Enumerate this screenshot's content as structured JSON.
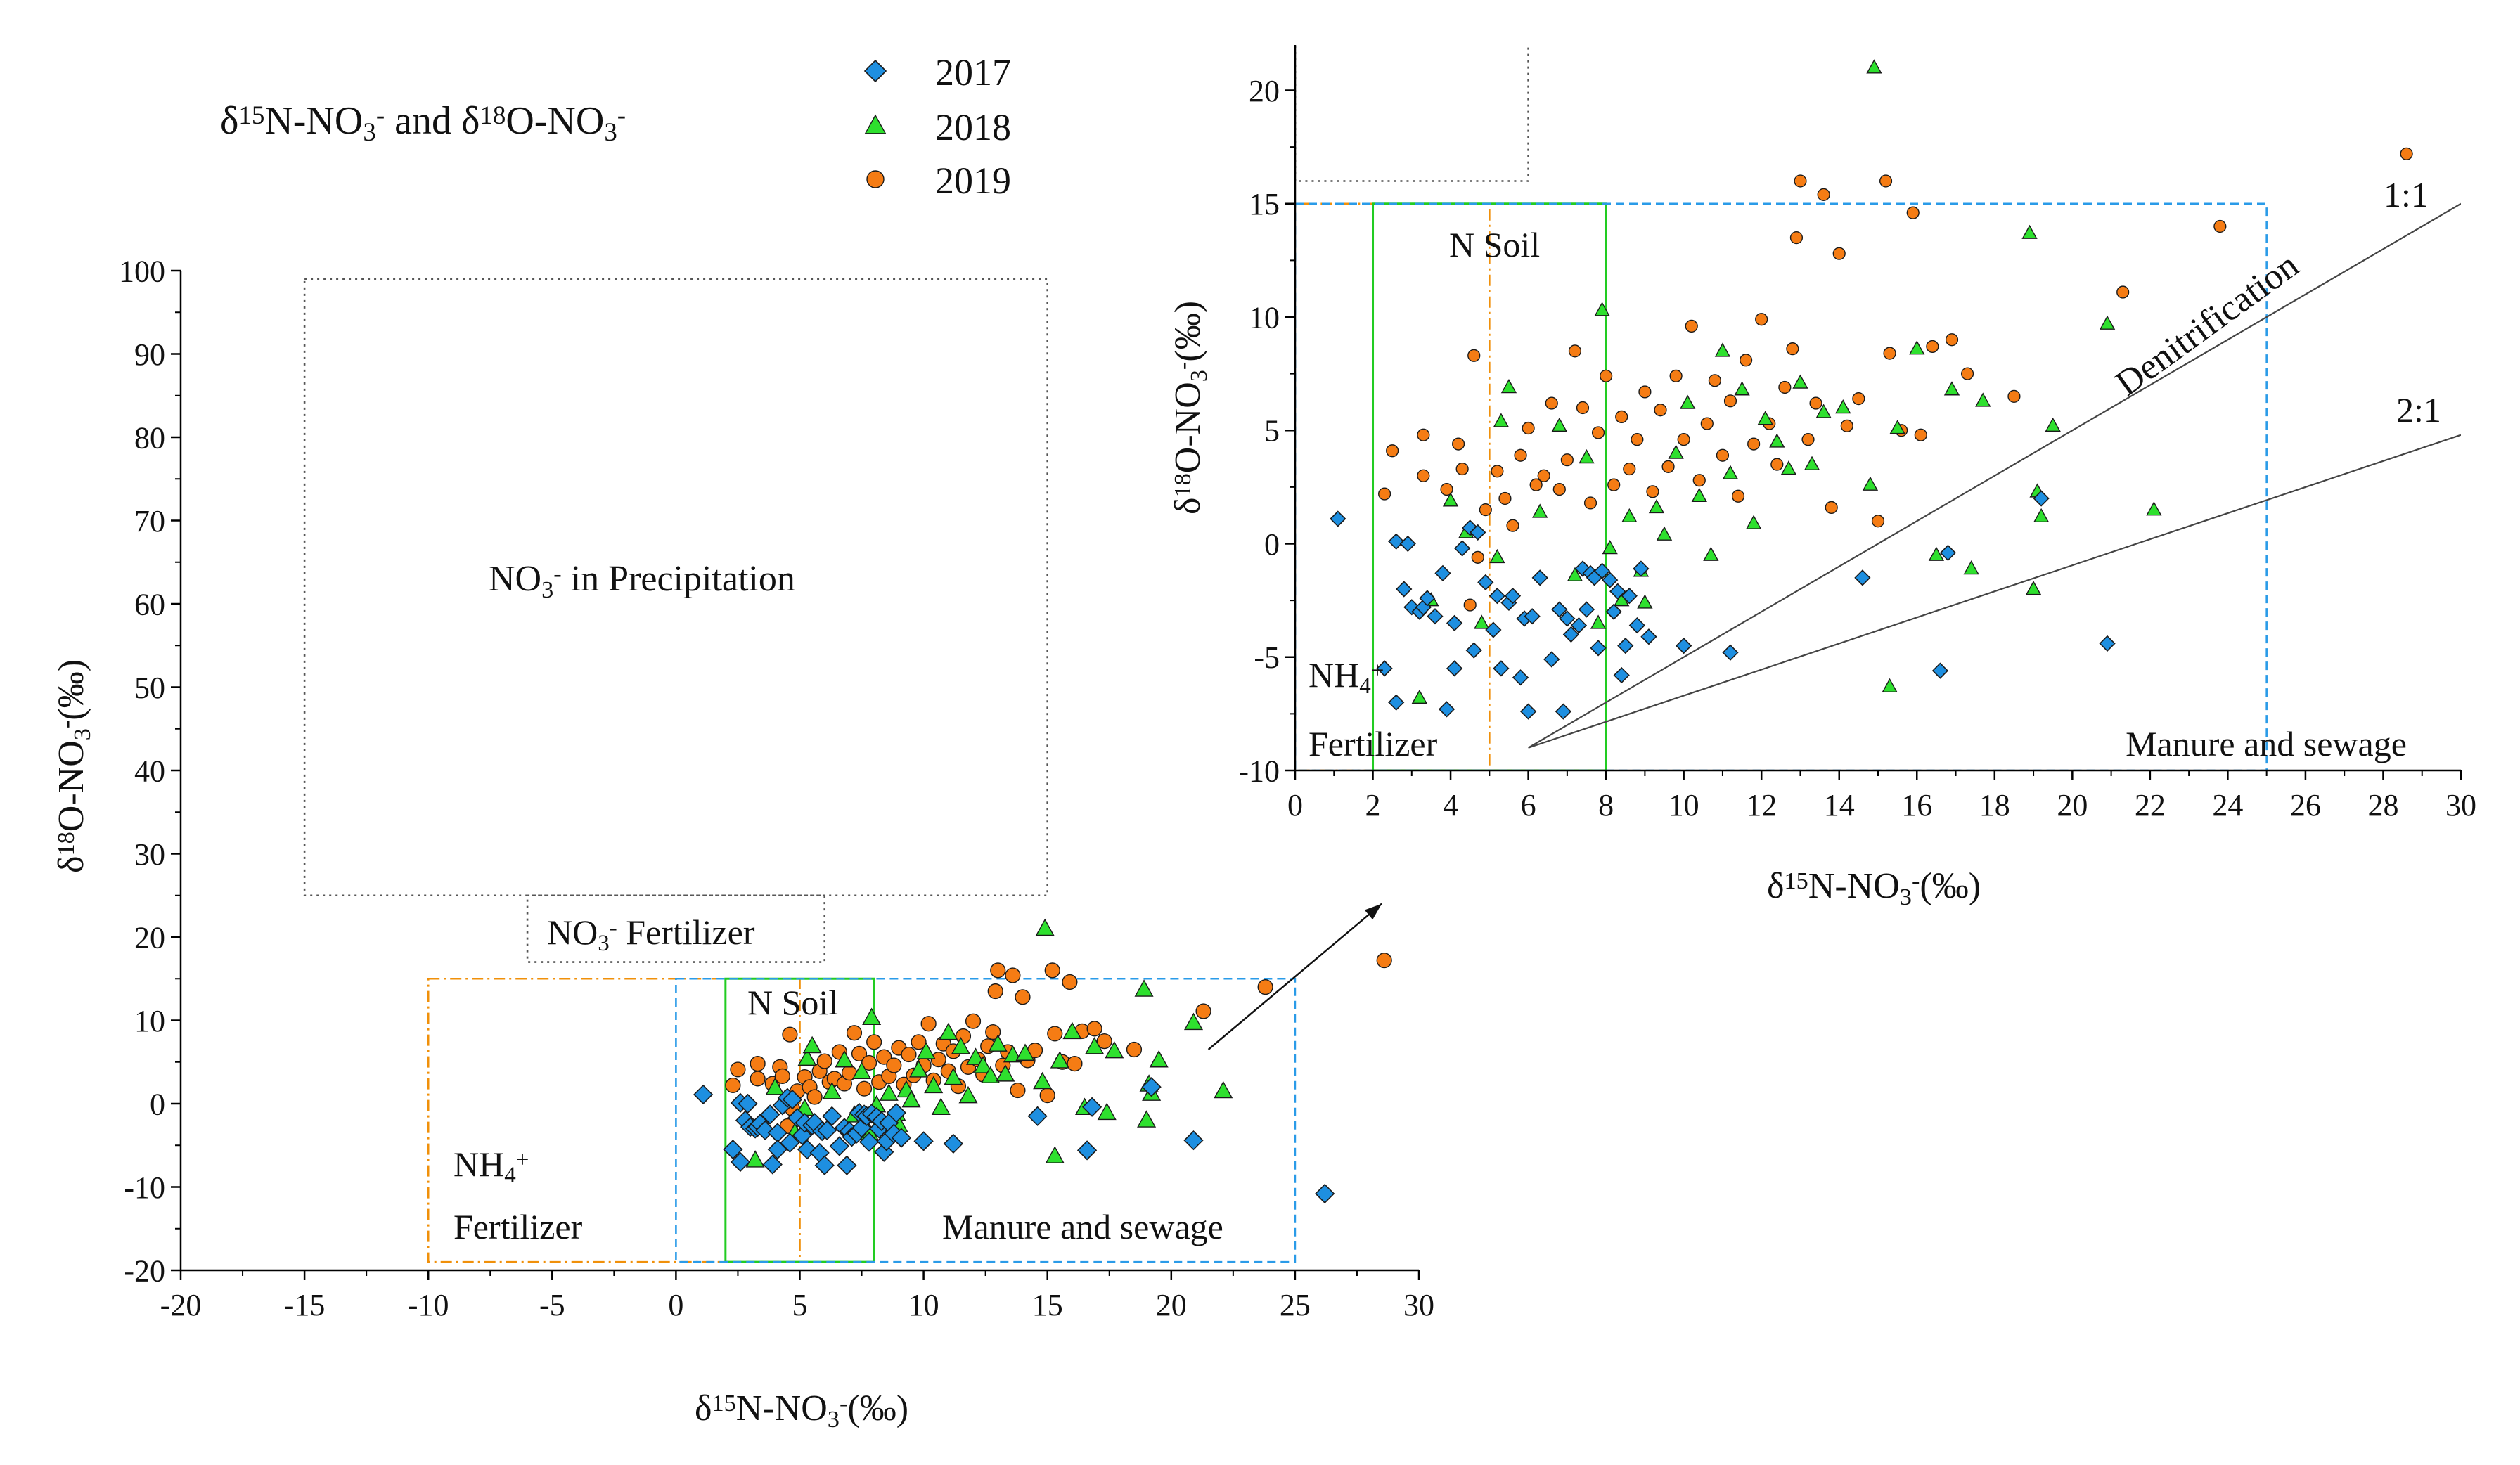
{
  "colors": {
    "s2017": "#1e8fe0",
    "s2018": "#2ee02e",
    "s2019": "#f57c14",
    "precip": "#555555",
    "nh4": "#f0900a",
    "soil": "#22cc22",
    "manure": "#2a9be8"
  },
  "legend": [
    {
      "name": "2017",
      "marker": "diamond",
      "color": "#1e8fe0"
    },
    {
      "name": "2018",
      "marker": "triangle",
      "color": "#2ee02e"
    },
    {
      "name": "2019",
      "marker": "circle",
      "color": "#f57c14"
    }
  ],
  "chart_data": [
    {
      "id": "main",
      "type": "scatter",
      "title": {
        "a": "δ",
        "b": "15",
        "c": "N-NO",
        "d": "3",
        "e": "-",
        "f": "  and δ",
        "g": "18",
        "h": "O-NO",
        "i": "3",
        "j": "-"
      },
      "xlabel": {
        "a": "δ",
        "b": "15",
        "c": "N-NO",
        "d": "3",
        "e": "-",
        "f": "(‰)"
      },
      "ylabel": {
        "a": "δ",
        "b": "18",
        "c": "O-NO",
        "d": "3",
        "e": "-",
        "f": "(‰)"
      },
      "xlim": [
        -20,
        30
      ],
      "ylim": [
        -20,
        100
      ],
      "xticks": [
        "-20",
        "-15",
        "-10",
        "-5",
        "0",
        "5",
        "10",
        "15",
        "20",
        "25",
        "30"
      ],
      "yticks": [
        "-20",
        "-10",
        "0",
        "10",
        "20",
        "30",
        "40",
        "50",
        "60",
        "70",
        "80",
        "90",
        "100"
      ],
      "xtick_values": [
        -20,
        -15,
        -10,
        -5,
        0,
        5,
        10,
        15,
        20,
        25,
        30
      ],
      "ytick_values": [
        -20,
        -10,
        0,
        10,
        20,
        30,
        40,
        50,
        60,
        70,
        80,
        90,
        100
      ],
      "regions": [
        {
          "name": "NO3- in Precipitation",
          "x": [
            -15,
            15
          ],
          "y": [
            25,
            99
          ],
          "style": "dot",
          "color": "#555555"
        },
        {
          "name": "NO3- Fertilizer",
          "x": [
            -6,
            6
          ],
          "y": [
            17,
            25
          ],
          "style": "dot",
          "color": "#555555"
        },
        {
          "name": "NH4+ Fertilizer",
          "x": [
            -10,
            5
          ],
          "y": [
            -19,
            15
          ],
          "style": "dashdot",
          "color": "#f0900a"
        },
        {
          "name": "N Soil",
          "x": [
            2,
            8
          ],
          "y": [
            -19,
            15
          ],
          "style": "solid",
          "color": "#22cc22"
        },
        {
          "name": "Manure and sewage",
          "x": [
            0,
            25
          ],
          "y": [
            -19,
            15
          ],
          "style": "dash",
          "color": "#2a9be8"
        }
      ],
      "labels": {
        "precip": {
          "a": "NO",
          "b": "3",
          "c": "-",
          "d": " in Precipitation"
        },
        "fert": {
          "a": "NO",
          "b": "3",
          "c": "-",
          "d": " Fertilizer"
        },
        "nsoil": "N Soil",
        "nh4": {
          "a": "NH",
          "b": "4",
          "c": "+",
          "d": "Fertilizer"
        },
        "manure": "Manure and sewage"
      },
      "arrow": {
        "from": [
          21.5,
          6.5
        ],
        "to": [
          28.5,
          24
        ]
      }
    },
    {
      "id": "inset",
      "type": "scatter",
      "xlabel": {
        "a": "δ",
        "b": "15",
        "c": "N-NO",
        "d": "3",
        "e": "-",
        "f": "(‰)"
      },
      "ylabel": {
        "a": "δ",
        "b": "18",
        "c": "O-NO",
        "d": "3",
        "e": "-",
        "f": "(‰)"
      },
      "xlim": [
        0,
        30
      ],
      "ylim": [
        -10,
        22
      ],
      "xticks": [
        "0",
        "2",
        "4",
        "6",
        "8",
        "10",
        "12",
        "14",
        "16",
        "18",
        "20",
        "22",
        "24",
        "26",
        "28",
        "30"
      ],
      "yticks": [
        "-10",
        "-5",
        "0",
        "5",
        "10",
        "15",
        "20"
      ],
      "xtick_values": [
        0,
        2,
        4,
        6,
        8,
        10,
        12,
        14,
        16,
        18,
        20,
        22,
        24,
        26,
        28,
        30
      ],
      "ytick_values": [
        -10,
        -5,
        0,
        5,
        10,
        15,
        20
      ],
      "regions": [
        {
          "name": "NH4+ Fertilizer",
          "x": [
            -10,
            5
          ],
          "y": [
            -10,
            15
          ],
          "style": "dashdot",
          "color": "#f0900a"
        },
        {
          "name": "N Soil",
          "x": [
            2,
            8
          ],
          "y": [
            -10,
            15
          ],
          "style": "solid",
          "color": "#22cc22"
        },
        {
          "name": "Manure and sewage",
          "x": [
            0,
            25
          ],
          "y": [
            -10,
            15
          ],
          "style": "dash",
          "color": "#2a9be8"
        },
        {
          "name": "NO3- Fertilizer",
          "x": [
            0,
            6
          ],
          "y": [
            16,
            25
          ],
          "style": "dot",
          "color": "#555555"
        }
      ],
      "lines": [
        {
          "name": "1:1",
          "from": [
            6,
            -9
          ],
          "to": [
            30,
            15
          ]
        },
        {
          "name": "2:1",
          "from": [
            6,
            -9
          ],
          "to": [
            30,
            4.8
          ]
        }
      ],
      "labels": {
        "nsoil": "N Soil",
        "nh4": {
          "a": "NH",
          "b": "4",
          "c": "+",
          "d": "Fertilizer"
        },
        "manure": "Manure and sewage",
        "r11": "1:1",
        "r21": "2:1",
        "denit": "Denitrification"
      }
    }
  ],
  "series": {
    "s2017": [
      [
        1.1,
        1.1
      ],
      [
        2.3,
        -5.5
      ],
      [
        2.6,
        -7.0
      ],
      [
        2.6,
        0.1
      ],
      [
        2.8,
        -2.0
      ],
      [
        2.9,
        0.0
      ],
      [
        3.0,
        -2.8
      ],
      [
        3.2,
        -3.0
      ],
      [
        3.3,
        -2.8
      ],
      [
        3.4,
        -2.4
      ],
      [
        3.6,
        -3.2
      ],
      [
        3.8,
        -1.3
      ],
      [
        3.9,
        -7.3
      ],
      [
        4.1,
        -3.5
      ],
      [
        4.1,
        -5.5
      ],
      [
        4.3,
        -0.2
      ],
      [
        4.5,
        0.7
      ],
      [
        4.6,
        -4.7
      ],
      [
        4.7,
        0.5
      ],
      [
        4.9,
        -1.7
      ],
      [
        5.1,
        -3.8
      ],
      [
        5.2,
        -2.3
      ],
      [
        5.3,
        -5.5
      ],
      [
        5.5,
        -2.6
      ],
      [
        5.6,
        -2.3
      ],
      [
        5.8,
        -5.9
      ],
      [
        5.9,
        -3.3
      ],
      [
        6.0,
        -7.4
      ],
      [
        6.1,
        -3.2
      ],
      [
        6.3,
        -1.5
      ],
      [
        6.6,
        -5.1
      ],
      [
        6.8,
        -2.9
      ],
      [
        6.9,
        -7.4
      ],
      [
        7.0,
        -3.3
      ],
      [
        7.1,
        -4.0
      ],
      [
        7.3,
        -3.6
      ],
      [
        7.4,
        -1.1
      ],
      [
        7.5,
        -2.9
      ],
      [
        7.6,
        -1.3
      ],
      [
        7.7,
        -1.5
      ],
      [
        7.8,
        -4.6
      ],
      [
        7.9,
        -1.2
      ],
      [
        8.1,
        -1.6
      ],
      [
        8.2,
        -3.0
      ],
      [
        8.3,
        -2.1
      ],
      [
        8.4,
        -5.8
      ],
      [
        8.5,
        -4.5
      ],
      [
        8.6,
        -2.3
      ],
      [
        8.8,
        -3.6
      ],
      [
        8.9,
        -1.1
      ],
      [
        9.1,
        -4.1
      ],
      [
        10.0,
        -4.5
      ],
      [
        11.2,
        -4.8
      ],
      [
        14.6,
        -1.5
      ],
      [
        16.6,
        -5.6
      ],
      [
        16.8,
        -0.4
      ],
      [
        19.2,
        2.0
      ],
      [
        20.9,
        -4.4
      ],
      [
        26.2,
        -10.8
      ]
    ],
    "s2018": [
      [
        3.2,
        -6.8
      ],
      [
        3.5,
        -2.5
      ],
      [
        4.0,
        1.9
      ],
      [
        4.4,
        0.5
      ],
      [
        4.8,
        -3.5
      ],
      [
        5.2,
        -0.6
      ],
      [
        5.3,
        5.4
      ],
      [
        5.5,
        6.9
      ],
      [
        6.3,
        1.4
      ],
      [
        6.8,
        5.2
      ],
      [
        7.2,
        -1.4
      ],
      [
        7.5,
        3.8
      ],
      [
        7.8,
        -3.5
      ],
      [
        7.9,
        10.3
      ],
      [
        8.1,
        -0.2
      ],
      [
        8.4,
        -2.5
      ],
      [
        8.6,
        1.2
      ],
      [
        8.9,
        -1.2
      ],
      [
        9.0,
        -2.6
      ],
      [
        9.3,
        1.6
      ],
      [
        9.5,
        0.4
      ],
      [
        9.8,
        4.0
      ],
      [
        10.1,
        6.2
      ],
      [
        10.4,
        2.1
      ],
      [
        10.7,
        -0.5
      ],
      [
        11.0,
        8.5
      ],
      [
        11.2,
        3.1
      ],
      [
        11.5,
        6.8
      ],
      [
        11.8,
        0.9
      ],
      [
        12.1,
        5.5
      ],
      [
        12.4,
        4.5
      ],
      [
        12.7,
        3.3
      ],
      [
        13.0,
        7.1
      ],
      [
        13.3,
        3.5
      ],
      [
        13.6,
        5.8
      ],
      [
        14.1,
        6.0
      ],
      [
        14.9,
        21.0
      ],
      [
        14.8,
        2.6
      ],
      [
        15.3,
        -6.3
      ],
      [
        15.5,
        5.1
      ],
      [
        16.0,
        8.6
      ],
      [
        16.5,
        -0.5
      ],
      [
        16.9,
        6.8
      ],
      [
        17.4,
        -1.1
      ],
      [
        17.7,
        6.3
      ],
      [
        18.9,
        13.7
      ],
      [
        19.1,
        2.3
      ],
      [
        19.2,
        1.2
      ],
      [
        19.0,
        -2.0
      ],
      [
        19.5,
        5.2
      ],
      [
        20.9,
        9.7
      ],
      [
        22.1,
        1.5
      ]
    ],
    "s2019": [
      [
        2.3,
        2.2
      ],
      [
        2.5,
        4.1
      ],
      [
        3.3,
        3.0
      ],
      [
        3.3,
        4.8
      ],
      [
        3.9,
        2.4
      ],
      [
        4.2,
        4.4
      ],
      [
        4.3,
        3.3
      ],
      [
        4.5,
        -2.7
      ],
      [
        4.6,
        8.3
      ],
      [
        4.7,
        -0.6
      ],
      [
        4.9,
        1.5
      ],
      [
        5.2,
        3.2
      ],
      [
        5.4,
        2.0
      ],
      [
        5.6,
        0.8
      ],
      [
        5.8,
        3.9
      ],
      [
        6.0,
        5.1
      ],
      [
        6.2,
        2.6
      ],
      [
        6.4,
        3.0
      ],
      [
        6.6,
        6.2
      ],
      [
        6.8,
        2.4
      ],
      [
        7.0,
        3.7
      ],
      [
        7.2,
        8.5
      ],
      [
        7.4,
        6.0
      ],
      [
        7.6,
        1.8
      ],
      [
        7.8,
        4.9
      ],
      [
        8.0,
        7.4
      ],
      [
        8.2,
        2.6
      ],
      [
        8.4,
        5.6
      ],
      [
        8.6,
        3.3
      ],
      [
        8.8,
        4.6
      ],
      [
        9.0,
        6.7
      ],
      [
        9.2,
        2.3
      ],
      [
        9.4,
        5.9
      ],
      [
        9.6,
        3.4
      ],
      [
        9.8,
        7.4
      ],
      [
        10.0,
        4.6
      ],
      [
        10.2,
        9.6
      ],
      [
        10.4,
        2.8
      ],
      [
        10.6,
        5.3
      ],
      [
        10.8,
        7.2
      ],
      [
        11.0,
        3.9
      ],
      [
        11.2,
        6.3
      ],
      [
        11.4,
        2.1
      ],
      [
        11.6,
        8.1
      ],
      [
        11.8,
        4.4
      ],
      [
        12.0,
        9.9
      ],
      [
        12.2,
        5.3
      ],
      [
        12.4,
        3.5
      ],
      [
        12.6,
        6.9
      ],
      [
        12.8,
        8.6
      ],
      [
        12.9,
        13.5
      ],
      [
        13.0,
        16.0
      ],
      [
        13.2,
        4.6
      ],
      [
        13.4,
        6.2
      ],
      [
        13.6,
        15.4
      ],
      [
        13.8,
        1.6
      ],
      [
        14.0,
        12.8
      ],
      [
        14.2,
        5.2
      ],
      [
        14.5,
        6.4
      ],
      [
        15.0,
        1.0
      ],
      [
        15.2,
        16.0
      ],
      [
        15.3,
        8.4
      ],
      [
        15.6,
        5.0
      ],
      [
        15.9,
        14.6
      ],
      [
        16.1,
        4.8
      ],
      [
        16.4,
        8.7
      ],
      [
        16.9,
        9.0
      ],
      [
        17.3,
        7.5
      ],
      [
        18.5,
        6.5
      ],
      [
        21.3,
        11.1
      ],
      [
        23.8,
        14.0
      ],
      [
        28.6,
        17.2
      ]
    ]
  }
}
